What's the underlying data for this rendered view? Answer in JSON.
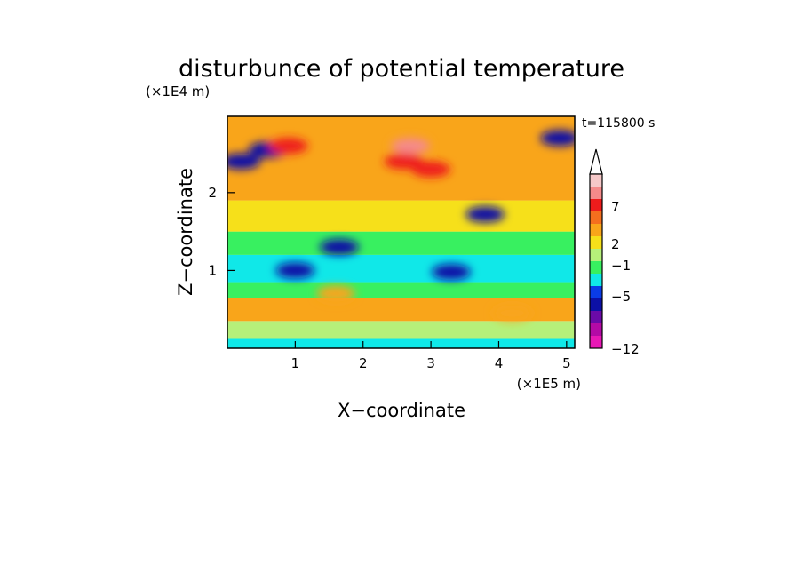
{
  "chart_data": {
    "type": "heatmap",
    "title": "disturbunce of potential temperature",
    "xlabel": "X−coordinate",
    "ylabel": "Z−coordinate",
    "x_unit": "(×1E5 m)",
    "y_unit": "(×1E4 m)",
    "time_label": "t=115800 s",
    "x_ticks": [
      "1",
      "2",
      "3",
      "4",
      "5"
    ],
    "x_tick_values": [
      1,
      2,
      3,
      4,
      5
    ],
    "y_ticks": [
      "1",
      "2"
    ],
    "y_tick_values": [
      1,
      2
    ],
    "xlim": [
      0,
      5.12
    ],
    "ylim": [
      0,
      2.98
    ],
    "grid": false,
    "legend": "right colorbar",
    "colorbar": {
      "tick_labels": [
        "7",
        "2",
        "−1",
        "−5",
        "−12"
      ],
      "tick_values": [
        7,
        2,
        -1,
        -5,
        -12
      ],
      "colors_top_to_bottom": [
        "#f6c8c8",
        "#f58a8a",
        "#ee1c1c",
        "#f46f1e",
        "#f9a51a",
        "#f6e01a",
        "#b6f07a",
        "#38f060",
        "#10e8e8",
        "#0a3ce6",
        "#0c10a6",
        "#6a0aa8",
        "#b40aa6",
        "#e818b6"
      ],
      "extend_top_color": "#ffffff"
    },
    "field_bands": [
      {
        "z_range": [
          0.0,
          0.12
        ],
        "level": -1
      },
      {
        "z_range": [
          0.12,
          0.35
        ],
        "level": 1
      },
      {
        "z_range": [
          0.35,
          0.65
        ],
        "level": 3
      },
      {
        "z_range": [
          0.65,
          0.85
        ],
        "level": 0
      },
      {
        "z_range": [
          0.85,
          1.2
        ],
        "level": -1
      },
      {
        "z_range": [
          1.2,
          1.5
        ],
        "level": 0
      },
      {
        "z_range": [
          1.5,
          1.9
        ],
        "level": 2
      },
      {
        "z_range": [
          1.9,
          2.98
        ],
        "level": 3
      }
    ],
    "field_features": [
      {
        "x": 0.2,
        "z": 2.4,
        "level": -5
      },
      {
        "x": 0.6,
        "z": 2.55,
        "level": -5
      },
      {
        "x": 1.65,
        "z": 1.3,
        "level": -5
      },
      {
        "x": 1.0,
        "z": 1.0,
        "level": -5
      },
      {
        "x": 3.3,
        "z": 0.98,
        "level": -5
      },
      {
        "x": 3.8,
        "z": 1.72,
        "level": -5
      },
      {
        "x": 4.9,
        "z": 2.7,
        "level": -5
      },
      {
        "x": 2.6,
        "z": 2.4,
        "level": 7
      },
      {
        "x": 2.7,
        "z": 2.6,
        "level": 8
      },
      {
        "x": 0.9,
        "z": 2.6,
        "level": 7
      },
      {
        "x": 3.0,
        "z": 2.3,
        "level": 7
      },
      {
        "x": 4.2,
        "z": 0.45,
        "level": 3
      },
      {
        "x": 1.6,
        "z": 0.7,
        "level": 3
      }
    ]
  }
}
